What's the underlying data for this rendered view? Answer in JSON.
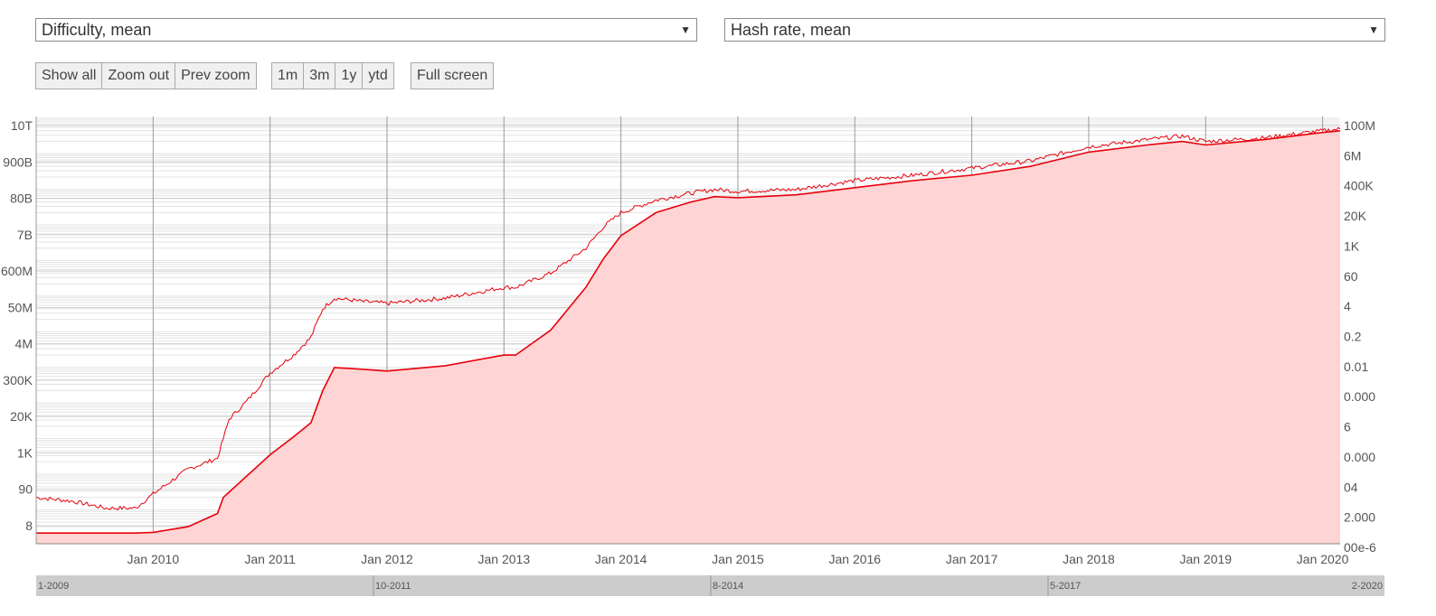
{
  "controls": {
    "left_select": "Difficulty, mean",
    "right_select": "Hash rate, mean",
    "zoom_buttons": [
      "Show all",
      "Zoom out",
      "Prev zoom"
    ],
    "range_buttons": [
      "1m",
      "3m",
      "1y",
      "ytd"
    ],
    "fullscreen": "Full screen"
  },
  "chart_data": {
    "type": "area",
    "title": "",
    "x_tick_labels": [
      "Jan 2010",
      "Jan 2011",
      "Jan 2012",
      "Jan 2013",
      "Jan 2014",
      "Jan 2015",
      "Jan 2016",
      "Jan 2017",
      "Jan 2018",
      "Jan 2019",
      "Jan 2020"
    ],
    "xlim": [
      2009.0,
      2020.15
    ],
    "y_left": {
      "scale": "log",
      "tick_labels": [
        "10T",
        "900B",
        "80B",
        "7B",
        "600M",
        "50M",
        "4M",
        "300K",
        "20K",
        "1K",
        "90",
        "8"
      ]
    },
    "y_right": {
      "scale": "log",
      "tick_labels": [
        "100M",
        "6M",
        "400K",
        "20K",
        "1K",
        "60",
        "4",
        "0.2",
        "0.01",
        "0.000",
        "6",
        "0.000",
        "04",
        "2.000",
        "00e-6"
      ]
    },
    "navigator_labels": [
      "1-2009",
      "10-2011",
      "8-2014",
      "5-2017",
      "2-2020"
    ],
    "grid": true,
    "series": [
      {
        "name": "Difficulty, mean",
        "color": "#e8000b",
        "fill": "#ffd4d4",
        "points": [
          [
            2009.0,
            0.3
          ],
          [
            2009.85,
            0.3
          ],
          [
            2010.0,
            0.32
          ],
          [
            2010.3,
            0.48
          ],
          [
            2010.55,
            0.85
          ],
          [
            2010.6,
            1.3
          ],
          [
            2010.8,
            1.9
          ],
          [
            2011.0,
            2.5
          ],
          [
            2011.2,
            3.0
          ],
          [
            2011.35,
            3.4
          ],
          [
            2011.45,
            4.3
          ],
          [
            2011.55,
            4.95
          ],
          [
            2011.8,
            4.9
          ],
          [
            2012.0,
            4.85
          ],
          [
            2012.5,
            5.0
          ],
          [
            2013.0,
            5.3
          ],
          [
            2013.1,
            5.3
          ],
          [
            2013.4,
            6.0
          ],
          [
            2013.7,
            7.2
          ],
          [
            2013.85,
            8.0
          ],
          [
            2014.0,
            8.65
          ],
          [
            2014.3,
            9.3
          ],
          [
            2014.6,
            9.6
          ],
          [
            2014.8,
            9.75
          ],
          [
            2015.0,
            9.72
          ],
          [
            2015.5,
            9.8
          ],
          [
            2016.0,
            10.0
          ],
          [
            2016.5,
            10.2
          ],
          [
            2017.0,
            10.35
          ],
          [
            2017.5,
            10.6
          ],
          [
            2018.0,
            11.0
          ],
          [
            2018.5,
            11.2
          ],
          [
            2018.8,
            11.3
          ],
          [
            2019.0,
            11.2
          ],
          [
            2019.5,
            11.35
          ],
          [
            2020.0,
            11.55
          ],
          [
            2020.15,
            11.6
          ]
        ]
      },
      {
        "name": "Hash rate, mean",
        "color": "#e8000b",
        "points": [
          [
            2009.0,
            1.3
          ],
          [
            2009.3,
            1.2
          ],
          [
            2009.6,
            1.0
          ],
          [
            2009.85,
            1.0
          ],
          [
            2010.0,
            1.4
          ],
          [
            2010.3,
            2.1
          ],
          [
            2010.55,
            2.4
          ],
          [
            2010.65,
            3.5
          ],
          [
            2010.8,
            4.0
          ],
          [
            2011.0,
            4.8
          ],
          [
            2011.2,
            5.3
          ],
          [
            2011.35,
            5.8
          ],
          [
            2011.45,
            6.6
          ],
          [
            2011.55,
            6.9
          ],
          [
            2011.8,
            6.8
          ],
          [
            2012.0,
            6.75
          ],
          [
            2012.5,
            6.9
          ],
          [
            2013.0,
            7.2
          ],
          [
            2013.1,
            7.2
          ],
          [
            2013.4,
            7.6
          ],
          [
            2013.7,
            8.3
          ],
          [
            2013.85,
            8.9
          ],
          [
            2014.0,
            9.3
          ],
          [
            2014.3,
            9.65
          ],
          [
            2014.6,
            9.85
          ],
          [
            2014.8,
            9.95
          ],
          [
            2015.0,
            9.9
          ],
          [
            2015.5,
            9.95
          ],
          [
            2016.0,
            10.2
          ],
          [
            2016.5,
            10.35
          ],
          [
            2017.0,
            10.55
          ],
          [
            2017.5,
            10.75
          ],
          [
            2018.0,
            11.15
          ],
          [
            2018.5,
            11.35
          ],
          [
            2018.8,
            11.45
          ],
          [
            2019.0,
            11.3
          ],
          [
            2019.5,
            11.4
          ],
          [
            2020.0,
            11.6
          ],
          [
            2020.15,
            11.65
          ]
        ]
      }
    ]
  }
}
